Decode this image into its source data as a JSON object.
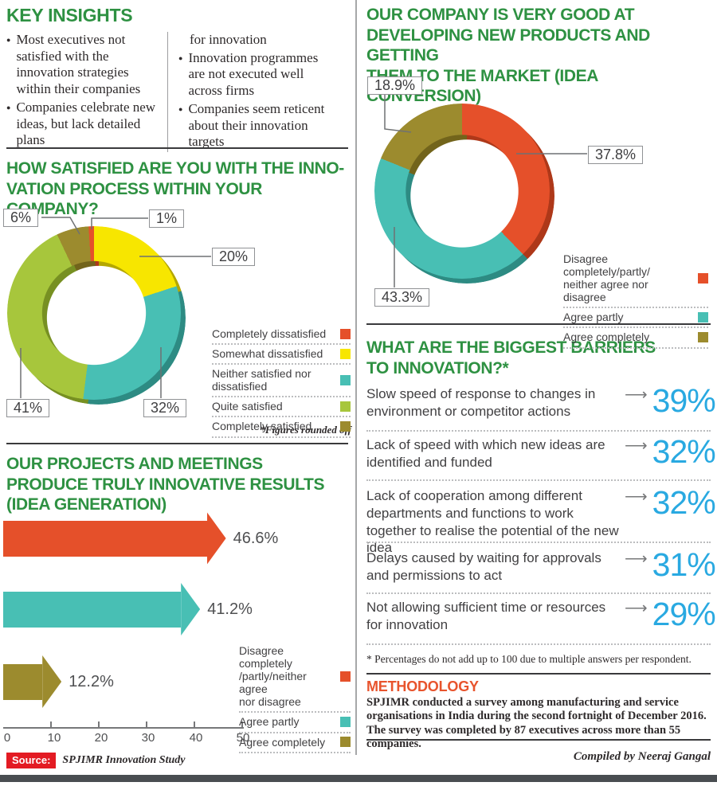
{
  "palette": {
    "heading_green": "#2e9142",
    "accent_blue": "#29a9e1",
    "red": "#e5502a",
    "yellow": "#f7e600",
    "teal": "#48bfb4",
    "lime": "#a7c63c",
    "olive": "#9c8b2e",
    "methodology_red": "#e8542d",
    "source_red": "#e31b23"
  },
  "key_insights": {
    "title": "KEY INSIGHTS",
    "col1_bullets": [
      "Most executives not satisfied with the innovation strategies within their companies",
      "Companies celebrate new ideas, but lack detailed plans"
    ],
    "col2_continuation": "for innovation",
    "col2_bullets": [
      "Innovation programmes are not executed well across firms",
      "Companies seem reticent about their innovation targets"
    ]
  },
  "chart_data": [
    {
      "type": "donut",
      "title": "HOW SATISFIED ARE YOU WITH THE INNO-\nVATION PROCESS WITHIN YOUR COMPANY?",
      "note": "*Figures rounded off",
      "segments": [
        {
          "label": "Somewhat dissatisfied",
          "value": 20,
          "display": "20%",
          "color": "#f7e600"
        },
        {
          "label": "Neither satisfied nor dissatisfied",
          "value": 32,
          "display": "32%",
          "color": "#48bfb4"
        },
        {
          "label": "Quite satisfied",
          "value": 41,
          "display": "41%",
          "color": "#a7c63c"
        },
        {
          "label": "Completely satisfied",
          "value": 6,
          "display": "6%",
          "color": "#9c8b2e"
        },
        {
          "label": "Completely dissatisfied",
          "value": 1,
          "display": "1%",
          "color": "#e5502a"
        }
      ],
      "legend": [
        {
          "label": "Completely dissatisfied",
          "color": "#e5502a"
        },
        {
          "label": "Somewhat dissatisfied",
          "color": "#f7e600"
        },
        {
          "label": "Neither satisfied nor dissatisfied",
          "color": "#48bfb4"
        },
        {
          "label": "Quite satisfied",
          "color": "#a7c63c"
        },
        {
          "label": "Completely satisfied",
          "color": "#9c8b2e"
        }
      ]
    },
    {
      "type": "donut",
      "title": "OUR COMPANY IS VERY GOOD AT\nDEVELOPING NEW PRODUCTS AND GETTING\nTHEM TO THE MARKET (IDEA CONVERSION)",
      "segments": [
        {
          "label": "Disagree completely/partly/neither agree nor disagree",
          "value": 37.8,
          "display": "37.8%",
          "color": "#e5502a"
        },
        {
          "label": "Agree partly",
          "value": 43.3,
          "display": "43.3%",
          "color": "#48bfb4"
        },
        {
          "label": "Agree completely",
          "value": 18.9,
          "display": "18.9%",
          "color": "#9c8b2e"
        }
      ],
      "legend": [
        {
          "label": "Disagree completely/partly/\nneither agree nor disagree",
          "color": "#e5502a"
        },
        {
          "label": "Agree partly",
          "color": "#48bfb4"
        },
        {
          "label": "Agree completely",
          "color": "#9c8b2e"
        }
      ]
    },
    {
      "type": "bar",
      "title": "OUR PROJECTS AND MEETINGS\nPRODUCE TRULY INNOVATIVE RESULTS\n(IDEA GENERATION)",
      "categories": [
        "Disagree completely/partly/neither agree nor disagree",
        "Agree partly",
        "Agree completely"
      ],
      "values": [
        46.6,
        41.2,
        12.2
      ],
      "displays": [
        "46.6%",
        "41.2%",
        "12.2%"
      ],
      "colors": [
        "#e5502a",
        "#48bfb4",
        "#9c8b2e"
      ],
      "xlim": [
        0,
        50
      ],
      "ticks": [
        "0",
        "10",
        "20",
        "30",
        "40",
        "50"
      ],
      "legend": [
        {
          "label": "Disagree completely\n/partly/neither agree\nnor disagree",
          "color": "#e5502a"
        },
        {
          "label": "Agree partly",
          "color": "#48bfb4"
        },
        {
          "label": "Agree completely",
          "color": "#9c8b2e"
        }
      ]
    }
  ],
  "barriers": {
    "title": "WHAT ARE THE BIGGEST BARRIERS\nTO INNOVATION?*",
    "items": [
      {
        "text": "Slow speed of response to changes in environment or competitor actions",
        "pct": "39%"
      },
      {
        "text": "Lack of speed with which new ideas are identified and funded",
        "pct": "32%"
      },
      {
        "text": "Lack of cooperation among different departments and functions to work together to realise the potential of the new idea",
        "pct": "32%"
      },
      {
        "text": "Delays caused by waiting for approvals and permissions to act",
        "pct": "31%"
      },
      {
        "text": "Not allowing sufficient time or resources for innovation",
        "pct": "29%"
      }
    ],
    "footnote": "* Percentages do not add up to 100 due to multiple answers per respondent."
  },
  "methodology": {
    "title": "METHODOLOGY",
    "text": "SPJIMR conducted a survey among manufacturing and service\norganisations in India during the second fortnight of December 2016.\nThe survey was completed by 87 executives across more than 55 companies."
  },
  "footer": {
    "source_label": "Source:",
    "source_text": "SPJIMR Innovation Study",
    "compiled_by": "Compiled by Neeraj Gangal"
  }
}
